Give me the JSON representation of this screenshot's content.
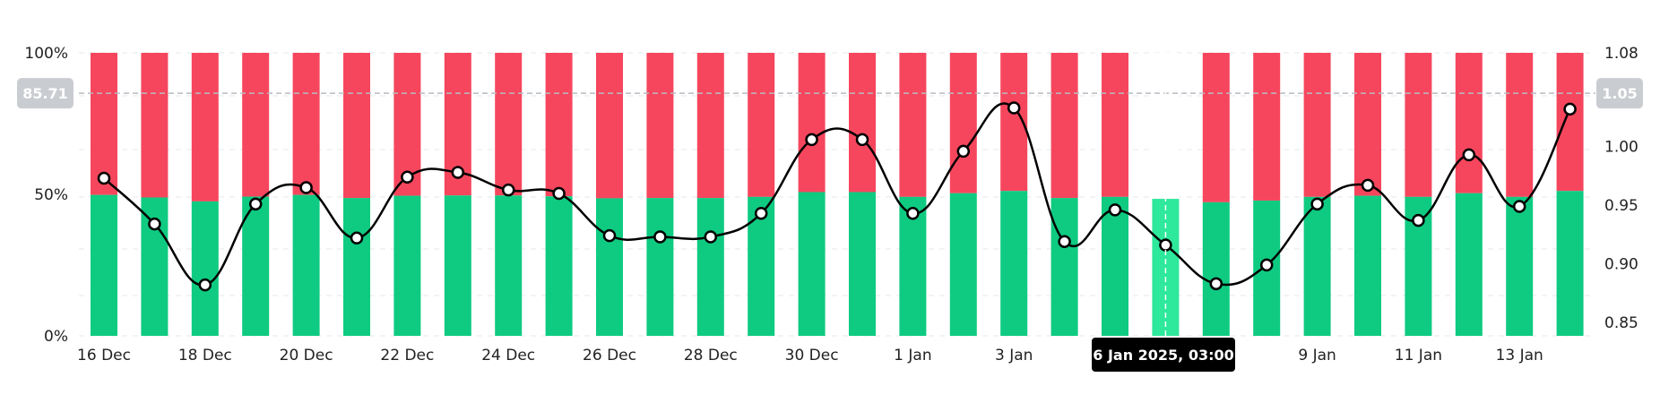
{
  "chart_data": {
    "type": "bar",
    "stacked_percent": true,
    "title": "",
    "xlabel": "",
    "ylabel": "",
    "categories": [
      "16 Dec",
      "17 Dec",
      "18 Dec",
      "19 Dec",
      "20 Dec",
      "21 Dec",
      "22 Dec",
      "23 Dec",
      "24 Dec",
      "25 Dec",
      "26 Dec",
      "27 Dec",
      "28 Dec",
      "29 Dec",
      "30 Dec",
      "31 Dec",
      "1 Jan",
      "2 Jan",
      "3 Jan",
      "4 Jan",
      "5 Jan",
      "6 Jan",
      "7 Jan",
      "8 Jan",
      "9 Jan",
      "10 Jan",
      "11 Jan",
      "12 Jan",
      "13 Jan",
      "14 Jan"
    ],
    "visible_x_labels": [
      "16 Dec",
      "18 Dec",
      "20 Dec",
      "22 Dec",
      "24 Dec",
      "26 Dec",
      "28 Dec",
      "30 Dec",
      "1 Jan",
      "3 Jan",
      "9 Jan",
      "11 Jan",
      "13 Jan"
    ],
    "series": [
      {
        "values": [
          49.8,
          48.9,
          47.5,
          49.2,
          49.8,
          48.7,
          49.5,
          49.6,
          49.6,
          49.3,
          48.6,
          48.7,
          48.7,
          49.1,
          50.8,
          50.8,
          49.1,
          50.4,
          51.2,
          48.7,
          49.1,
          48.4,
          47.2,
          47.8,
          49.1,
          49.5,
          49.1,
          50.4,
          49.1,
          51.2
        ],
        "color": "#0ecb81"
      },
      {
        "values": [
          50.2,
          51.1,
          52.5,
          50.8,
          50.2,
          51.3,
          50.5,
          50.4,
          50.4,
          50.7,
          51.4,
          51.3,
          51.3,
          50.9,
          49.2,
          49.2,
          50.9,
          49.6,
          48.8,
          51.3,
          50.9,
          51.6,
          52.8,
          52.2,
          50.9,
          50.5,
          50.9,
          49.6,
          50.9,
          48.8
        ],
        "color": "#f6465d"
      }
    ],
    "line_series": {
      "axis": "right",
      "values": [
        0.973,
        0.934,
        0.882,
        0.951,
        0.965,
        0.922,
        0.974,
        0.978,
        0.963,
        0.96,
        0.924,
        0.923,
        0.923,
        0.943,
        1.006,
        1.006,
        0.943,
        0.996,
        1.033,
        0.919,
        0.946,
        0.916,
        0.883,
        0.899,
        0.951,
        0.967,
        0.937,
        0.993,
        0.949,
        1.032
      ],
      "color": "#000000"
    },
    "left_axis": {
      "ticks": [
        "100%",
        "50%",
        "0%"
      ],
      "ylim": [
        0,
        100
      ]
    },
    "right_axis": {
      "ticks": [
        "1.08",
        "1.05",
        "1.00",
        "0.95",
        "0.90",
        "0.85"
      ],
      "ylim": [
        0.84,
        1.08
      ]
    },
    "crosshair": {
      "category": "6 Jan",
      "x_label": "6 Jan 2025, 03:00",
      "left_value_label": "85.71",
      "right_value_label": "1.05",
      "left_value": 85.71,
      "right_value": 1.05
    },
    "grid": true,
    "legend": "none"
  }
}
